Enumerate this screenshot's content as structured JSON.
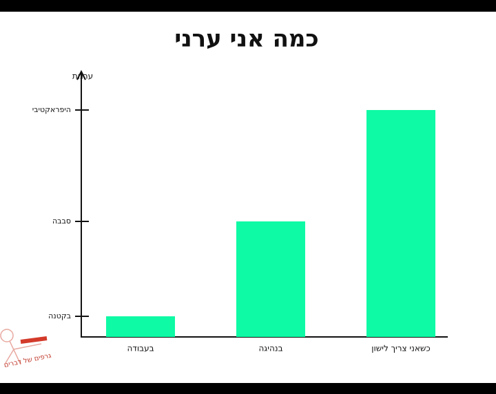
{
  "chart_data": {
    "type": "bar",
    "title": "כמה אני ערני",
    "y_label": "ערנות",
    "categories": [
      "בעבודה",
      "בנהיגה",
      "כשאני צריך לישון"
    ],
    "values": [
      1,
      5.6,
      11
    ],
    "color": "#0ffaa5",
    "ylim": [
      0,
      13
    ],
    "yticks": [
      {
        "value": 1,
        "label": "בקטנה"
      },
      {
        "value": 5.6,
        "label": "סבבה"
      },
      {
        "value": 11,
        "label": "היפראקטיבי"
      }
    ],
    "grid": false
  },
  "watermark": "גרפים של דברים"
}
